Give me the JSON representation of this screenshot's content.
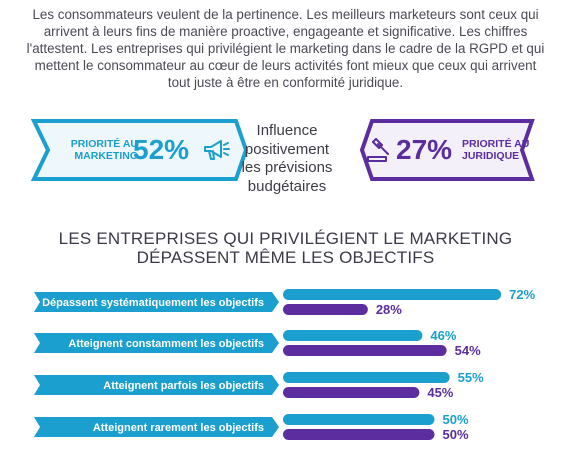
{
  "intro": {
    "line1": "Les consommateurs veulent de la pertinence. Les meilleurs marketeurs sont ceux qui",
    "line2": "arrivent à leurs fins de manière proactive, engageante et significative. Les chiffres",
    "line3": "l'attestent. Les entreprises qui privilégient le marketing dans le cadre de la RGPD et qui",
    "line4": "mettent le consommateur au cœur de leurs activités font mieux que ceux qui arrivent",
    "line5": "tout juste à être en conformité juridique."
  },
  "banner_left": {
    "label_line1": "PRIORITÉ AU",
    "label_line2": "MARKETING",
    "percent": "52%",
    "icon": "megaphone-icon"
  },
  "banner_right": {
    "label_line1": "PRIORITÉ AU",
    "label_line2": "JURIDIQUE",
    "percent": "27%",
    "icon": "gavel-icon"
  },
  "center": {
    "line1": "Influence",
    "line2": "positivement",
    "line3": "les prévisions",
    "line4": "budgétaires"
  },
  "colors": {
    "marketing": "#1a9fcf",
    "juridique": "#5b2d9e",
    "text": "#4a4a55"
  },
  "chart_data": {
    "type": "bar",
    "title": "LES ENTREPRISES QUI PRIVILÉGIENT LE MARKETING DÉPASSENT MÊME LES OBJECTIFS",
    "title_line1": "LES ENTREPRISES QUI PRIVILÉGIENT LE MARKETING",
    "title_line2": "DÉPASSENT MÊME LES OBJECTIFS",
    "orientation": "horizontal",
    "categories": [
      "Dépassent systématiquement les objectifs",
      "Atteignent constamment les objectifs",
      "Atteignent parfois les objectifs",
      "Atteignent rarement les objectifs"
    ],
    "series": [
      {
        "values": [
          72,
          46,
          55,
          50
        ],
        "labels": [
          "72%",
          "46%",
          "55%",
          "50%"
        ],
        "color": "#1a9fcf"
      },
      {
        "values": [
          28,
          54,
          45,
          50
        ],
        "labels": [
          "28%",
          "54%",
          "45%",
          "50%"
        ],
        "color": "#5b2d9e"
      }
    ],
    "xlim": [
      0,
      100
    ],
    "grid": false
  }
}
